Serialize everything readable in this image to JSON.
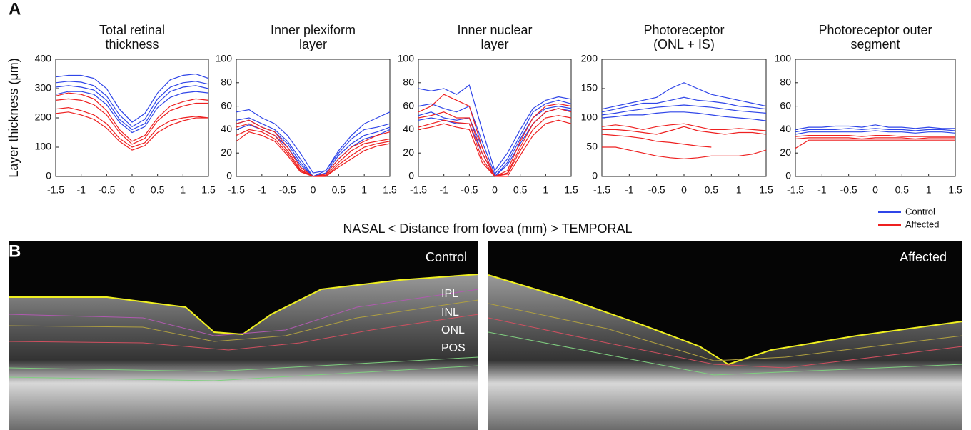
{
  "panel_labels": [
    "A",
    "B"
  ],
  "y_axis_label": "Layer thickness (μm)",
  "x_axis_label": "NASAL   <  Distance from fovea (mm) > TEMPORAL",
  "legend": [
    {
      "name": "Control",
      "color": "#2f45e8"
    },
    {
      "name": "Affected",
      "color": "#ee2020"
    }
  ],
  "images": [
    {
      "label": "Control",
      "layers": [
        "IPL",
        "INL",
        "ONL",
        "POS"
      ]
    },
    {
      "label": "Affected"
    }
  ],
  "chart_data": [
    {
      "type": "line",
      "title": [
        "Total retinal",
        "thickness"
      ],
      "x": [
        -1.5,
        -1.25,
        -1,
        -0.75,
        -0.5,
        -0.25,
        0,
        0.25,
        0.5,
        0.75,
        1,
        1.25,
        1.5
      ],
      "xlim": [
        -1.5,
        1.5
      ],
      "xticks": [
        -1.5,
        -1,
        -0.5,
        0,
        0.5,
        1,
        1.5
      ],
      "ylim": [
        0,
        400
      ],
      "yticks": [
        0,
        100,
        200,
        300,
        400
      ],
      "series": [
        {
          "color": "#2f45e8",
          "values": [
            340,
            345,
            345,
            335,
            300,
            230,
            185,
            215,
            285,
            330,
            345,
            350,
            335
          ]
        },
        {
          "color": "#2f45e8",
          "values": [
            320,
            325,
            322,
            310,
            275,
            210,
            170,
            195,
            265,
            305,
            320,
            325,
            315
          ]
        },
        {
          "color": "#2f45e8",
          "values": [
            305,
            310,
            305,
            295,
            260,
            195,
            160,
            180,
            250,
            290,
            305,
            310,
            300
          ]
        },
        {
          "color": "#2f45e8",
          "values": [
            280,
            290,
            290,
            280,
            245,
            185,
            150,
            170,
            235,
            270,
            285,
            290,
            285
          ]
        },
        {
          "color": "#ee2020",
          "values": [
            275,
            285,
            280,
            265,
            225,
            160,
            120,
            140,
            200,
            240,
            255,
            265,
            260
          ]
        },
        {
          "color": "#ee2020",
          "values": [
            260,
            265,
            260,
            245,
            210,
            150,
            110,
            130,
            190,
            225,
            240,
            250,
            250
          ]
        },
        {
          "color": "#ee2020",
          "values": [
            230,
            235,
            225,
            210,
            180,
            130,
            100,
            115,
            165,
            190,
            200,
            205,
            200
          ]
        },
        {
          "color": "#ee2020",
          "values": [
            215,
            220,
            210,
            195,
            165,
            120,
            90,
            105,
            150,
            175,
            190,
            200,
            200
          ]
        }
      ]
    },
    {
      "type": "line",
      "title": [
        "Inner plexiform",
        "layer"
      ],
      "x": [
        -1.5,
        -1.25,
        -1,
        -0.75,
        -0.5,
        -0.25,
        0,
        0.25,
        0.5,
        0.75,
        1,
        1.25,
        1.5
      ],
      "xlim": [
        -1.5,
        1.5
      ],
      "xticks": [
        -1.5,
        -1,
        -0.5,
        0,
        0.5,
        1,
        1.5
      ],
      "ylim": [
        0,
        100
      ],
      "yticks": [
        0,
        20,
        40,
        60,
        80,
        100
      ],
      "series": [
        {
          "color": "#2f45e8",
          "values": [
            55,
            57,
            50,
            45,
            35,
            20,
            3,
            5,
            22,
            35,
            45,
            50,
            55
          ]
        },
        {
          "color": "#2f45e8",
          "values": [
            48,
            50,
            45,
            40,
            30,
            15,
            0,
            5,
            20,
            32,
            40,
            42,
            45
          ]
        },
        {
          "color": "#2f45e8",
          "values": [
            45,
            48,
            42,
            38,
            28,
            12,
            0,
            3,
            18,
            28,
            35,
            38,
            42
          ]
        },
        {
          "color": "#2f45e8",
          "values": [
            40,
            44,
            40,
            35,
            25,
            10,
            0,
            2,
            15,
            25,
            32,
            35,
            40
          ]
        },
        {
          "color": "#ee2020",
          "values": [
            45,
            48,
            42,
            38,
            25,
            8,
            0,
            2,
            15,
            25,
            30,
            35,
            38
          ]
        },
        {
          "color": "#ee2020",
          "values": [
            42,
            45,
            40,
            35,
            22,
            6,
            0,
            1,
            12,
            22,
            28,
            30,
            32
          ]
        },
        {
          "color": "#ee2020",
          "values": [
            35,
            40,
            38,
            32,
            20,
            5,
            0,
            0,
            10,
            18,
            25,
            28,
            30
          ]
        },
        {
          "color": "#ee2020",
          "values": [
            30,
            38,
            35,
            30,
            18,
            4,
            0,
            0,
            8,
            15,
            22,
            26,
            28
          ]
        }
      ]
    },
    {
      "type": "line",
      "title": [
        "Inner nuclear",
        "layer"
      ],
      "x": [
        -1.5,
        -1.25,
        -1,
        -0.75,
        -0.5,
        -0.25,
        0,
        0.25,
        0.5,
        0.75,
        1,
        1.25,
        1.5
      ],
      "xlim": [
        -1.5,
        1.5
      ],
      "xticks": [
        -1.5,
        -1,
        -0.5,
        0,
        0.5,
        1,
        1.5
      ],
      "ylim": [
        0,
        100
      ],
      "yticks": [
        0,
        20,
        40,
        60,
        80,
        100
      ],
      "series": [
        {
          "color": "#2f45e8",
          "values": [
            75,
            73,
            75,
            70,
            78,
            40,
            5,
            20,
            40,
            58,
            65,
            68,
            66
          ]
        },
        {
          "color": "#2f45e8",
          "values": [
            60,
            62,
            58,
            55,
            60,
            30,
            2,
            15,
            35,
            55,
            62,
            65,
            62
          ]
        },
        {
          "color": "#2f45e8",
          "values": [
            52,
            55,
            50,
            48,
            50,
            25,
            0,
            12,
            32,
            50,
            58,
            60,
            58
          ]
        },
        {
          "color": "#2f45e8",
          "values": [
            48,
            50,
            48,
            45,
            45,
            20,
            0,
            10,
            28,
            45,
            55,
            58,
            56
          ]
        },
        {
          "color": "#ee2020",
          "values": [
            55,
            60,
            70,
            65,
            60,
            25,
            0,
            5,
            30,
            50,
            60,
            62,
            60
          ]
        },
        {
          "color": "#ee2020",
          "values": [
            50,
            52,
            55,
            50,
            50,
            20,
            0,
            3,
            25,
            45,
            55,
            58,
            55
          ]
        },
        {
          "color": "#ee2020",
          "values": [
            42,
            45,
            48,
            46,
            45,
            15,
            0,
            2,
            22,
            40,
            50,
            52,
            50
          ]
        },
        {
          "color": "#ee2020",
          "values": [
            40,
            42,
            45,
            42,
            40,
            12,
            0,
            0,
            18,
            35,
            45,
            48,
            45
          ]
        }
      ]
    },
    {
      "type": "line",
      "title": [
        "Photoreceptor",
        "(ONL + IS)"
      ],
      "x": [
        -1.5,
        -1.25,
        -1,
        -0.75,
        -0.5,
        -0.25,
        0,
        0.25,
        0.5,
        0.75,
        1,
        1.25,
        1.5
      ],
      "xlim": [
        -1.5,
        1.5
      ],
      "xticks": [
        -1.5,
        -1,
        -0.5,
        0,
        0.5,
        1,
        1.5
      ],
      "ylim": [
        0,
        200
      ],
      "yticks": [
        0,
        50,
        100,
        150,
        200
      ],
      "series": [
        {
          "color": "#2f45e8",
          "values": [
            115,
            120,
            125,
            130,
            135,
            150,
            160,
            150,
            140,
            135,
            130,
            125,
            120
          ]
        },
        {
          "color": "#2f45e8",
          "values": [
            110,
            115,
            120,
            125,
            125,
            130,
            135,
            130,
            128,
            125,
            120,
            118,
            115
          ]
        },
        {
          "color": "#2f45e8",
          "values": [
            105,
            108,
            112,
            115,
            118,
            120,
            122,
            120,
            118,
            115,
            112,
            110,
            108
          ]
        },
        {
          "color": "#2f45e8",
          "values": [
            100,
            102,
            105,
            105,
            108,
            110,
            110,
            108,
            105,
            102,
            100,
            98,
            95
          ]
        },
        {
          "color": "#ee2020",
          "values": [
            85,
            88,
            85,
            80,
            85,
            88,
            90,
            85,
            80,
            80,
            82,
            80,
            78
          ]
        },
        {
          "color": "#ee2020",
          "values": [
            80,
            80,
            78,
            75,
            72,
            78,
            85,
            78,
            75,
            72,
            75,
            75,
            72
          ]
        },
        {
          "color": "#ee2020",
          "values": [
            72,
            70,
            68,
            65,
            60,
            58,
            55,
            52,
            50,
            null,
            null,
            null,
            null
          ]
        },
        {
          "color": "#ee2020",
          "values": [
            50,
            50,
            45,
            40,
            35,
            32,
            30,
            32,
            35,
            35,
            35,
            38,
            45
          ]
        }
      ]
    },
    {
      "type": "line",
      "title": [
        "Photoreceptor outer",
        "segment"
      ],
      "x": [
        -1.5,
        -1.25,
        -1,
        -0.75,
        -0.5,
        -0.25,
        0,
        0.25,
        0.5,
        0.75,
        1,
        1.25,
        1.5
      ],
      "xlim": [
        -1.5,
        1.5
      ],
      "xticks": [
        -1.5,
        -1,
        -0.5,
        0,
        0.5,
        1,
        1.5
      ],
      "ylim": [
        0,
        100
      ],
      "yticks": [
        0,
        20,
        40,
        60,
        80,
        100
      ],
      "series": [
        {
          "color": "#2f45e8",
          "values": [
            40,
            42,
            42,
            43,
            43,
            42,
            44,
            42,
            42,
            41,
            42,
            41,
            41
          ]
        },
        {
          "color": "#2f45e8",
          "values": [
            38,
            40,
            40,
            40,
            41,
            40,
            41,
            40,
            40,
            39,
            40,
            40,
            39
          ]
        },
        {
          "color": "#2f45e8",
          "values": [
            36,
            38,
            38,
            38,
            38,
            38,
            39,
            38,
            38,
            37,
            38,
            38,
            37
          ]
        },
        {
          "color": "#ee2020",
          "values": [
            34,
            35,
            35,
            35,
            35,
            34,
            35,
            35,
            34,
            34,
            34,
            34,
            34
          ]
        },
        {
          "color": "#ee2020",
          "values": [
            32,
            33,
            33,
            33,
            33,
            32,
            33,
            33,
            33,
            32,
            33,
            33,
            33
          ]
        },
        {
          "color": "#ee2020",
          "values": [
            24,
            31,
            31,
            31,
            31,
            31,
            31,
            31,
            31,
            31,
            31,
            31,
            31
          ]
        }
      ]
    }
  ]
}
